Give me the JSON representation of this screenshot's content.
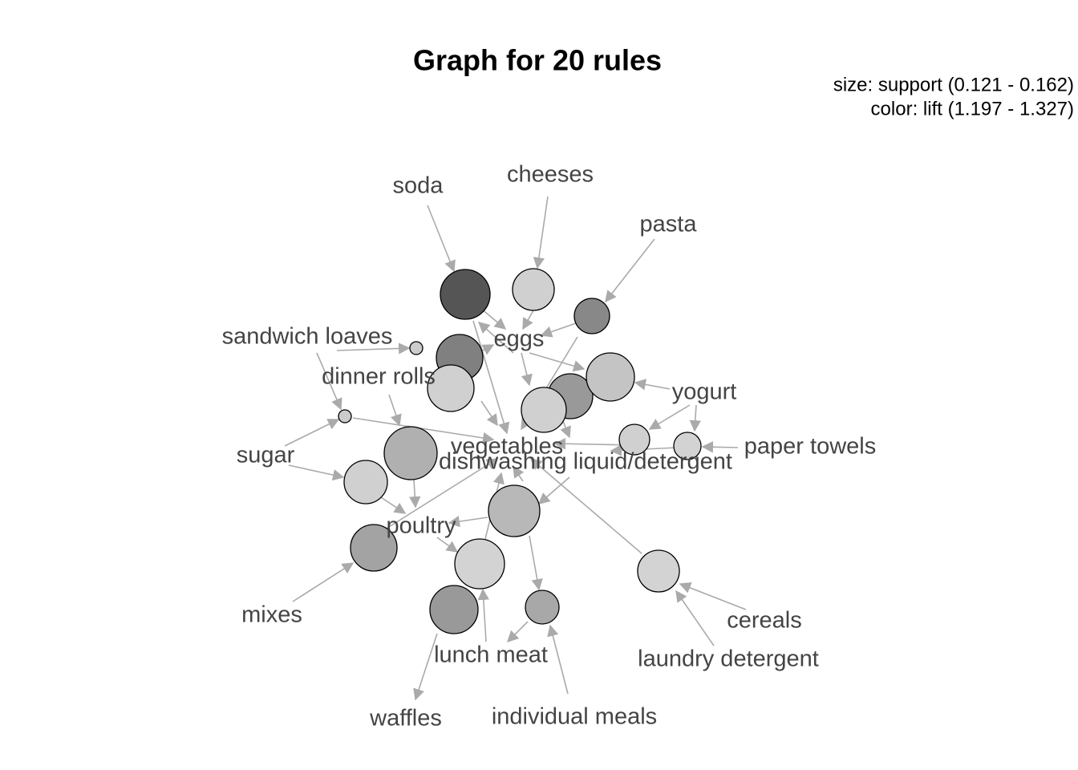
{
  "title": "Graph for 20 rules",
  "legend": {
    "size": "size: support (0.121 - 0.162)",
    "color": "color: lift (1.197 - 1.327)"
  },
  "items": [
    {
      "label": "soda"
    },
    {
      "label": "cheeses"
    },
    {
      "label": "pasta"
    },
    {
      "label": "sandwich loaves"
    },
    {
      "label": "eggs"
    },
    {
      "label": "dinner rolls"
    },
    {
      "label": "yogurt"
    },
    {
      "label": "sugar"
    },
    {
      "label": "vegetables"
    },
    {
      "label": "paper towels"
    },
    {
      "label": "dishwashing liquid/detergent"
    },
    {
      "label": "poultry"
    },
    {
      "label": "mixes"
    },
    {
      "label": "cereals"
    },
    {
      "label": "lunch meat"
    },
    {
      "label": "laundry detergent"
    },
    {
      "label": "waffles"
    },
    {
      "label": "individual meals"
    }
  ]
}
